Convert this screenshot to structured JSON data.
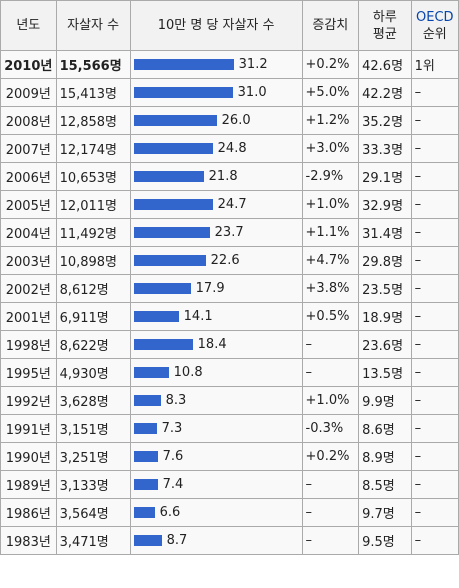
{
  "bar_color": "#3366cc",
  "link_color": "#0645ad",
  "headers": {
    "year": "년도",
    "total": "자살자 수",
    "rate": "10만 명 당 자살자 수",
    "change": "증감치",
    "avg_line1": "하루",
    "avg_line2": "평균",
    "oecd_line1": "OECD",
    "oecd_line2": "순위"
  },
  "rows": [
    {
      "year": "2010년",
      "total": "15,566명",
      "rate": 31.2,
      "rate_label": "31.2",
      "change": "+0.2%",
      "avg": "42.6명",
      "oecd": "1위"
    },
    {
      "year": "2009년",
      "total": "15,413명",
      "rate": 31.0,
      "rate_label": "31.0",
      "change": "+5.0%",
      "avg": "42.2명",
      "oecd": "–"
    },
    {
      "year": "2008년",
      "total": "12,858명",
      "rate": 26.0,
      "rate_label": "26.0",
      "change": "+1.2%",
      "avg": "35.2명",
      "oecd": "–"
    },
    {
      "year": "2007년",
      "total": "12,174명",
      "rate": 24.8,
      "rate_label": "24.8",
      "change": "+3.0%",
      "avg": "33.3명",
      "oecd": "–"
    },
    {
      "year": "2006년",
      "total": "10,653명",
      "rate": 21.8,
      "rate_label": "21.8",
      "change": "-2.9%",
      "avg": "29.1명",
      "oecd": "–"
    },
    {
      "year": "2005년",
      "total": "12,011명",
      "rate": 24.7,
      "rate_label": "24.7",
      "change": "+1.0%",
      "avg": "32.9명",
      "oecd": "–"
    },
    {
      "year": "2004년",
      "total": "11,492명",
      "rate": 23.7,
      "rate_label": "23.7",
      "change": "+1.1%",
      "avg": "31.4명",
      "oecd": "–"
    },
    {
      "year": "2003년",
      "total": "10,898명",
      "rate": 22.6,
      "rate_label": "22.6",
      "change": "+4.7%",
      "avg": "29.8명",
      "oecd": "–"
    },
    {
      "year": "2002년",
      "total": "8,612명",
      "rate": 17.9,
      "rate_label": "17.9",
      "change": "+3.8%",
      "avg": "23.5명",
      "oecd": "–"
    },
    {
      "year": "2001년",
      "total": "6,911명",
      "rate": 14.1,
      "rate_label": "14.1",
      "change": "+0.5%",
      "avg": "18.9명",
      "oecd": "–"
    },
    {
      "year": "1998년",
      "total": "8,622명",
      "rate": 18.4,
      "rate_label": "18.4",
      "change": "–",
      "avg": "23.6명",
      "oecd": "–"
    },
    {
      "year": "1995년",
      "total": "4,930명",
      "rate": 10.8,
      "rate_label": "10.8",
      "change": "–",
      "avg": "13.5명",
      "oecd": "–"
    },
    {
      "year": "1992년",
      "total": "3,628명",
      "rate": 8.3,
      "rate_label": "8.3",
      "change": "+1.0%",
      "avg": "9.9명",
      "oecd": "–"
    },
    {
      "year": "1991년",
      "total": "3,151명",
      "rate": 7.3,
      "rate_label": "7.3",
      "change": "-0.3%",
      "avg": "8.6명",
      "oecd": "–"
    },
    {
      "year": "1990년",
      "total": "3,251명",
      "rate": 7.6,
      "rate_label": "7.6",
      "change": "+0.2%",
      "avg": "8.9명",
      "oecd": "–"
    },
    {
      "year": "1989년",
      "total": "3,133명",
      "rate": 7.4,
      "rate_label": "7.4",
      "change": "–",
      "avg": "8.5명",
      "oecd": "–"
    },
    {
      "year": "1986년",
      "total": "3,564명",
      "rate": 6.6,
      "rate_label": "6.6",
      "change": "–",
      "avg": "9.7명",
      "oecd": "–"
    },
    {
      "year": "1983년",
      "total": "3,471명",
      "rate": 8.7,
      "rate_label": "8.7",
      "change": "–",
      "avg": "9.5명",
      "oecd": "–"
    }
  ]
}
